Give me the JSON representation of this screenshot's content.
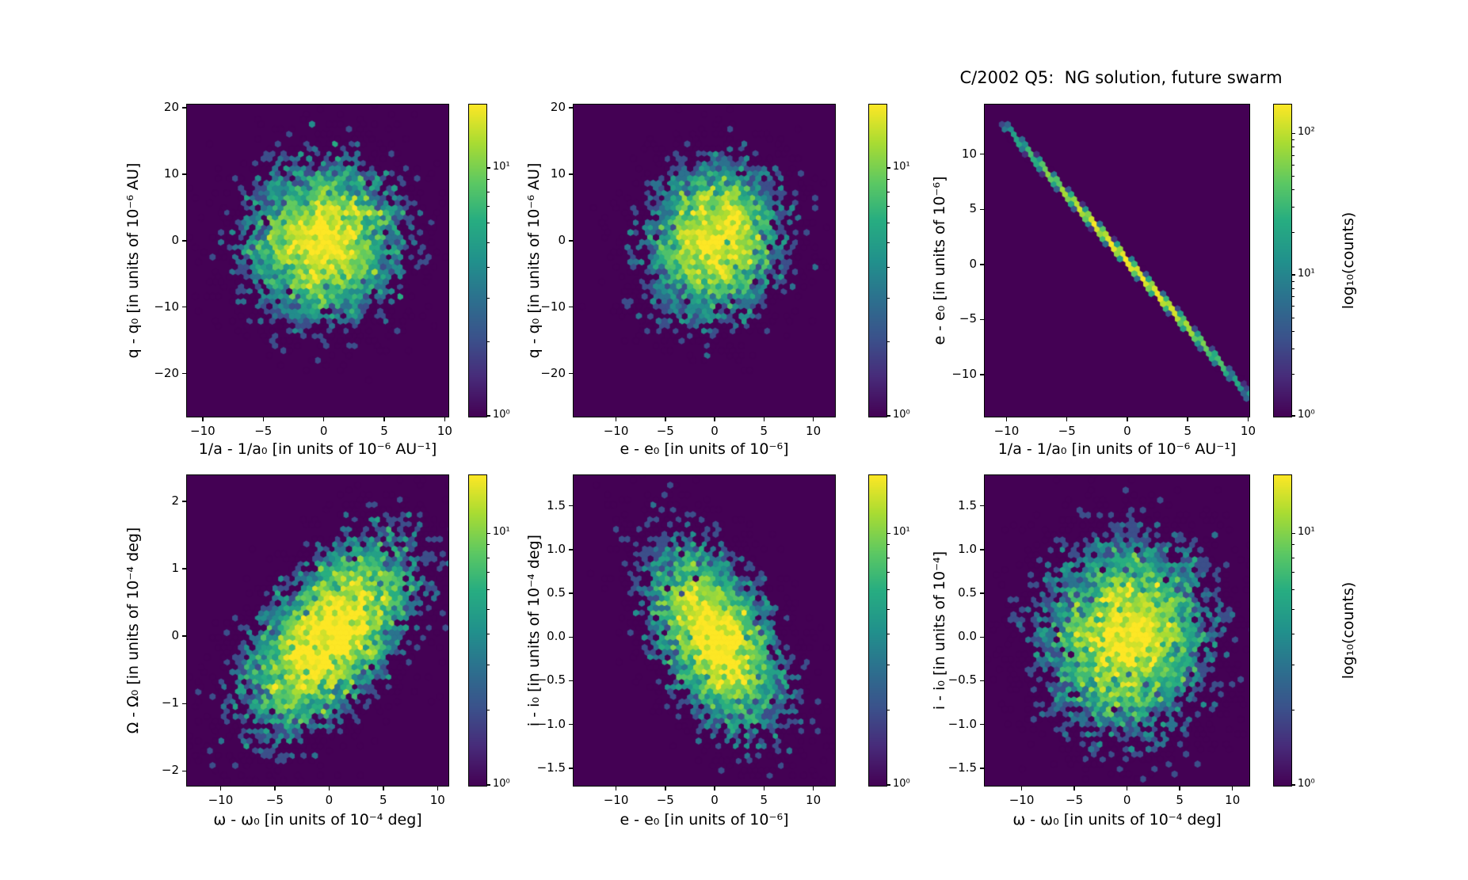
{
  "title": "C/2002 Q5:  NG solution, future swarm",
  "colorbar_label": "log₁₀(counts)",
  "colors": {
    "background": "#ffffff",
    "hex_background": "#440154",
    "axis": "#000000"
  },
  "colormap": {
    "name": "viridis",
    "anchors": [
      [
        0.0,
        "#440154"
      ],
      [
        0.13,
        "#472c7a"
      ],
      [
        0.25,
        "#3b518b"
      ],
      [
        0.38,
        "#2c718e"
      ],
      [
        0.5,
        "#21918c"
      ],
      [
        0.63,
        "#27ad81"
      ],
      [
        0.75,
        "#5cc863"
      ],
      [
        0.88,
        "#aadc32"
      ],
      [
        1.0,
        "#fde725"
      ]
    ]
  },
  "chart_data": [
    {
      "type": "hexbin",
      "name": "top-left",
      "xlabel": "1/a - 1/a₀ [in units of 10⁻⁶ AU⁻¹]",
      "ylabel": "q - q₀ [in units of 10⁻⁶ AU]",
      "xlim": [
        -11.3,
        10.3
      ],
      "ylim": [
        -26.5,
        20.5
      ],
      "x_ticks": {
        "values": [
          -10,
          -5,
          0,
          5,
          10
        ],
        "labels": [
          "−10",
          "−5",
          "0",
          "5",
          "10"
        ]
      },
      "y_ticks": {
        "values": [
          20,
          10,
          0,
          -10,
          -20
        ],
        "labels": [
          "20",
          "10",
          "0",
          "−10",
          "−20"
        ]
      },
      "colorbar": {
        "scale": "log",
        "vmax": 18,
        "ticks": [
          {
            "value": 10,
            "label": "10¹"
          },
          {
            "value": 1,
            "label": "10⁰"
          }
        ]
      },
      "gridsize": 46,
      "distribution": {
        "kind": "gaussian",
        "n": 6500,
        "mean": [
          0,
          0
        ],
        "sigma": [
          3.2,
          6.0
        ],
        "rho": 0.05,
        "seed": 11
      }
    },
    {
      "type": "hexbin",
      "name": "top-middle",
      "xlabel": "e - e₀ [in units of 10⁻⁶]",
      "ylabel": "q - q₀ [in units of 10⁻⁶ AU]",
      "xlim": [
        -14.3,
        12.2
      ],
      "ylim": [
        -26.5,
        20.5
      ],
      "x_ticks": {
        "values": [
          -10,
          -5,
          0,
          5,
          10
        ],
        "labels": [
          "−10",
          "−5",
          "0",
          "5",
          "10"
        ]
      },
      "y_ticks": {
        "values": [
          20,
          10,
          0,
          -10,
          -20
        ],
        "labels": [
          "20",
          "10",
          "0",
          "−10",
          "−20"
        ]
      },
      "colorbar": {
        "scale": "log",
        "vmax": 18,
        "ticks": [
          {
            "value": 10,
            "label": "10¹"
          },
          {
            "value": 1,
            "label": "10⁰"
          }
        ]
      },
      "gridsize": 46,
      "distribution": {
        "kind": "gaussian",
        "n": 5600,
        "mean": [
          0,
          0
        ],
        "sigma": [
          3.5,
          6.0
        ],
        "rho": 0.12,
        "seed": 22
      }
    },
    {
      "type": "hexbin",
      "name": "top-right",
      "xlabel": "1/a - 1/a₀ [in units of 10⁻⁶ AU⁻¹]",
      "ylabel": "e - e₀ [in units of 10⁻⁶]",
      "xlim": [
        -11.8,
        10.1
      ],
      "ylim": [
        -13.8,
        14.5
      ],
      "x_ticks": {
        "values": [
          -10,
          -5,
          0,
          5,
          10
        ],
        "labels": [
          "−10",
          "−5",
          "0",
          "5",
          "10"
        ]
      },
      "y_ticks": {
        "values": [
          10,
          5,
          0,
          -5,
          -10
        ],
        "labels": [
          "10",
          "5",
          "0",
          "−5",
          "−10"
        ]
      },
      "colorbar": {
        "scale": "log",
        "vmax": 160,
        "ticks": [
          {
            "value": 100,
            "label": "10²"
          },
          {
            "value": 10,
            "label": "10¹"
          },
          {
            "value": 1,
            "label": "10⁰"
          }
        ]
      },
      "gridsize": 46,
      "distribution": {
        "kind": "line",
        "n": 6000,
        "x_sigma": 4.6,
        "x_clip": 10.2,
        "slope": -1.21,
        "intercept": 0.3,
        "perp_sigma": 0.15,
        "seed": 33
      }
    },
    {
      "type": "hexbin",
      "name": "bottom-left",
      "xlabel": "ω - ω₀ [in units of 10⁻⁴ deg]",
      "ylabel": "Ω - Ω₀ [in units of 10⁻⁴ deg]",
      "xlim": [
        -13.1,
        11.0
      ],
      "ylim": [
        -2.22,
        2.39
      ],
      "x_ticks": {
        "values": [
          -10,
          -5,
          0,
          5,
          10
        ],
        "labels": [
          "−10",
          "−5",
          "0",
          "5",
          "10"
        ]
      },
      "y_ticks": {
        "values": [
          2,
          1,
          0,
          -1,
          -2
        ],
        "labels": [
          "2",
          "1",
          "0",
          "−1",
          "−2"
        ]
      },
      "colorbar": {
        "scale": "log",
        "vmax": 17,
        "ticks": [
          {
            "value": 10,
            "label": "10¹"
          },
          {
            "value": 1,
            "label": "10⁰"
          }
        ]
      },
      "gridsize": 46,
      "distribution": {
        "kind": "gaussian",
        "n": 8000,
        "mean": [
          0,
          0
        ],
        "sigma": [
          4.0,
          0.72
        ],
        "rho": 0.55,
        "seed": 44
      }
    },
    {
      "type": "hexbin",
      "name": "bottom-middle",
      "xlabel": "e - e₀ [in units of 10⁻⁶]",
      "ylabel": "i - i₀ [in units of 10⁻⁴ deg]",
      "xlim": [
        -14.3,
        12.2
      ],
      "ylim": [
        -1.7,
        1.85
      ],
      "x_ticks": {
        "values": [
          -10,
          -5,
          0,
          5,
          10
        ],
        "labels": [
          "−10",
          "−5",
          "0",
          "5",
          "10"
        ]
      },
      "y_ticks": {
        "values": [
          1.5,
          1.0,
          0.5,
          0.0,
          -0.5,
          -1.0,
          -1.5
        ],
        "labels": [
          "1.5",
          "1.0",
          "0.5",
          "0.0",
          "−0.5",
          "−1.0",
          "−1.5"
        ]
      },
      "colorbar": {
        "scale": "log",
        "vmax": 17,
        "ticks": [
          {
            "value": 10,
            "label": "10¹"
          },
          {
            "value": 1,
            "label": "10⁰"
          }
        ]
      },
      "gridsize": 46,
      "distribution": {
        "kind": "gaussian",
        "n": 6300,
        "mean": [
          0,
          0
        ],
        "sigma": [
          3.5,
          0.55
        ],
        "rho": -0.5,
        "seed": 55
      }
    },
    {
      "type": "hexbin",
      "name": "bottom-right",
      "xlabel": "ω - ω₀ [in units of 10⁻⁴ deg]",
      "ylabel": "i - i₀ [in units of 10⁻⁴]",
      "xlim": [
        -13.5,
        11.6
      ],
      "ylim": [
        -1.7,
        1.85
      ],
      "x_ticks": {
        "values": [
          -10,
          -5,
          0,
          5,
          10
        ],
        "labels": [
          "−10",
          "−5",
          "0",
          "5",
          "10"
        ]
      },
      "y_ticks": {
        "values": [
          1.5,
          1.0,
          0.5,
          0.0,
          -0.5,
          -1.0,
          -1.5
        ],
        "labels": [
          "1.5",
          "1.0",
          "0.5",
          "0.0",
          "−0.5",
          "−1.0",
          "−1.5"
        ]
      },
      "colorbar": {
        "scale": "log",
        "vmax": 17,
        "ticks": [
          {
            "value": 10,
            "label": "10¹"
          },
          {
            "value": 1,
            "label": "10⁰"
          }
        ]
      },
      "gridsize": 46,
      "distribution": {
        "kind": "gaussian",
        "n": 7600,
        "mean": [
          0,
          0
        ],
        "sigma": [
          4.0,
          0.55
        ],
        "rho": 0.05,
        "seed": 66
      }
    }
  ]
}
